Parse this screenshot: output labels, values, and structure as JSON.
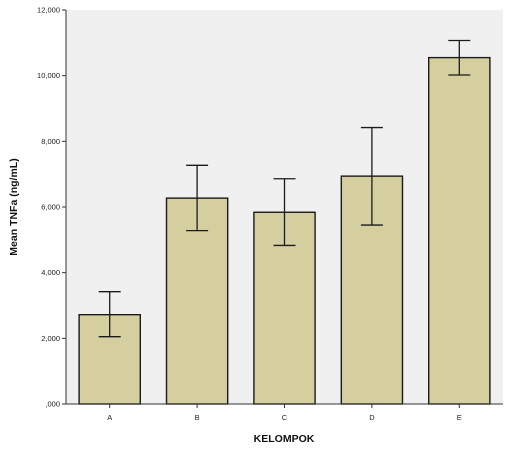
{
  "chart_data": {
    "type": "bar",
    "title": "",
    "xlabel": "KELOMPOK",
    "ylabel": "Mean TNFa (ng/mL)",
    "categories": [
      "A",
      "B",
      "C",
      "D",
      "E"
    ],
    "values": [
      2.72,
      6.27,
      5.84,
      6.94,
      10.55
    ],
    "error_low": [
      2.05,
      5.28,
      4.83,
      5.45,
      10.02
    ],
    "error_high": [
      3.42,
      7.27,
      6.86,
      8.42,
      11.07
    ],
    "ylim": [
      0,
      12
    ],
    "yticks": [
      0,
      2,
      4,
      6,
      8,
      10,
      12
    ],
    "ytick_labels": [
      ",000",
      "2,000",
      "4,000",
      "6,000",
      "8,000",
      "10,000",
      "12,000"
    ],
    "grid": false,
    "legend": "none",
    "colors": {
      "bar_fill": "#D5CFA0",
      "bar_stroke": "#1a1a1a",
      "plot_bg": "#F0F0F0",
      "axis": "#333333",
      "error_bar": "#1a1a1a"
    }
  }
}
